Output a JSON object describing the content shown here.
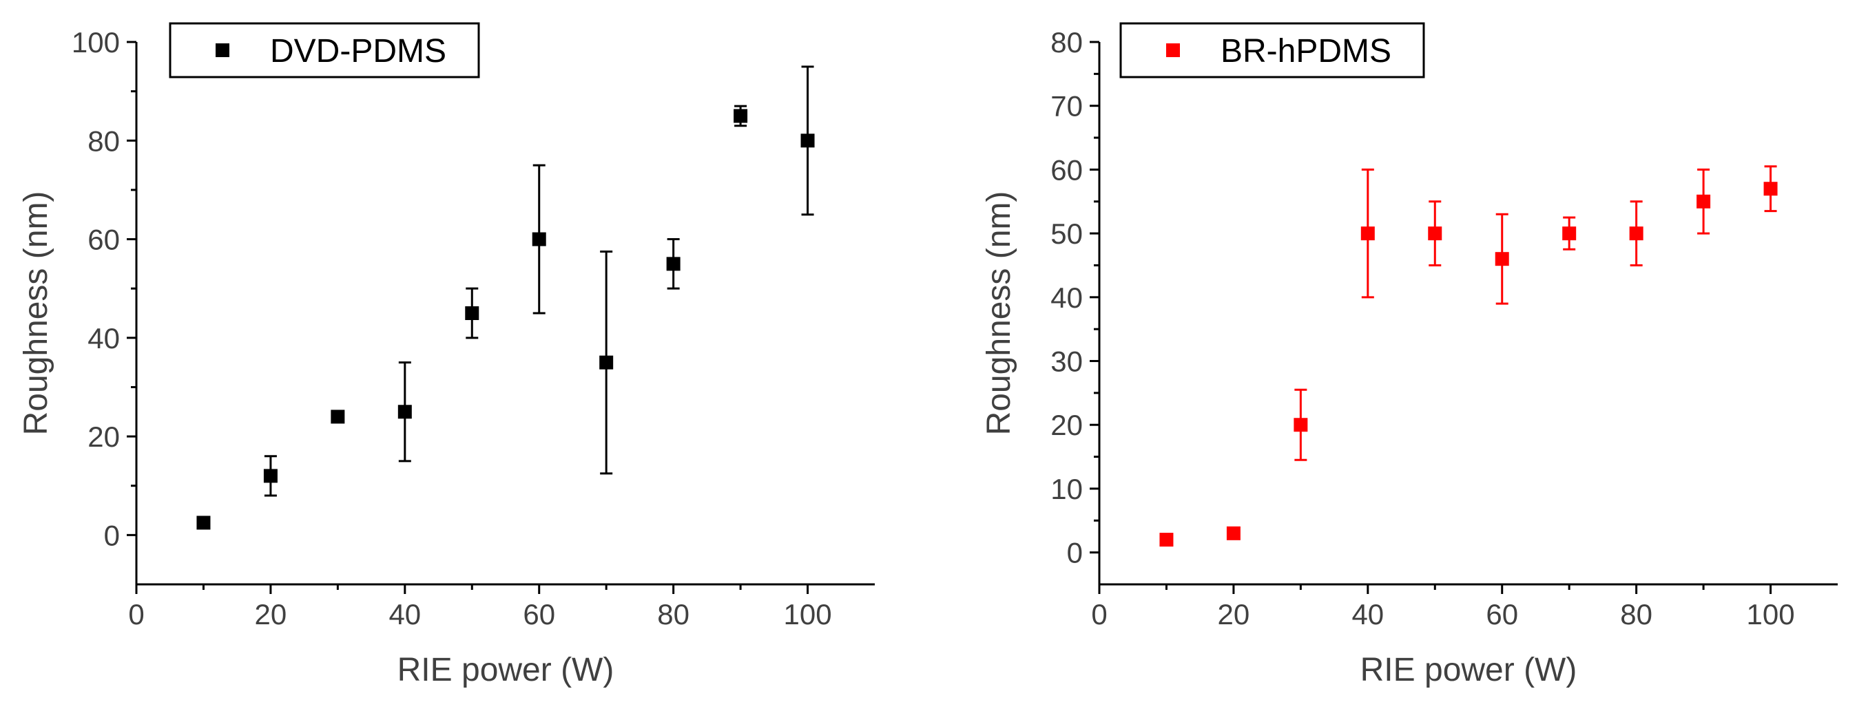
{
  "chart_data": [
    {
      "type": "scatter",
      "xlabel": "RIE power (W)",
      "ylabel": "Roughness (nm)",
      "xlim": [
        0,
        110
      ],
      "ylim": [
        -10,
        100
      ],
      "xticks": [
        0,
        20,
        40,
        60,
        80,
        100
      ],
      "yticks": [
        0,
        20,
        40,
        60,
        80,
        100
      ],
      "legend_placement": "top-left",
      "series": [
        {
          "name": "DVD-PDMS",
          "color": "#000000",
          "marker": "square",
          "x": [
            10,
            20,
            30,
            40,
            50,
            60,
            70,
            80,
            90,
            100
          ],
          "y": [
            2.5,
            12,
            24,
            25,
            45,
            60,
            35,
            55,
            85,
            80
          ],
          "yerr": [
            0,
            4,
            0,
            10,
            5,
            15,
            22.5,
            5,
            2,
            15
          ]
        }
      ]
    },
    {
      "type": "scatter",
      "xlabel": "RIE power (W)",
      "ylabel": "Roughness (nm)",
      "xlim": [
        0,
        110
      ],
      "ylim": [
        -5,
        80
      ],
      "xticks": [
        0,
        20,
        40,
        60,
        80,
        100
      ],
      "yticks": [
        0,
        10,
        20,
        30,
        40,
        50,
        60,
        70,
        80
      ],
      "legend_placement": "top-left",
      "series": [
        {
          "name": "BR-hPDMS",
          "color": "#ff0000",
          "marker": "square",
          "x": [
            10,
            20,
            30,
            40,
            50,
            60,
            70,
            80,
            90,
            100
          ],
          "y": [
            2,
            3,
            20,
            50,
            50,
            46,
            50,
            50,
            55,
            57
          ],
          "yerr": [
            0,
            0,
            5.5,
            10,
            5,
            7,
            2.5,
            5,
            5,
            3.5
          ]
        }
      ]
    }
  ]
}
